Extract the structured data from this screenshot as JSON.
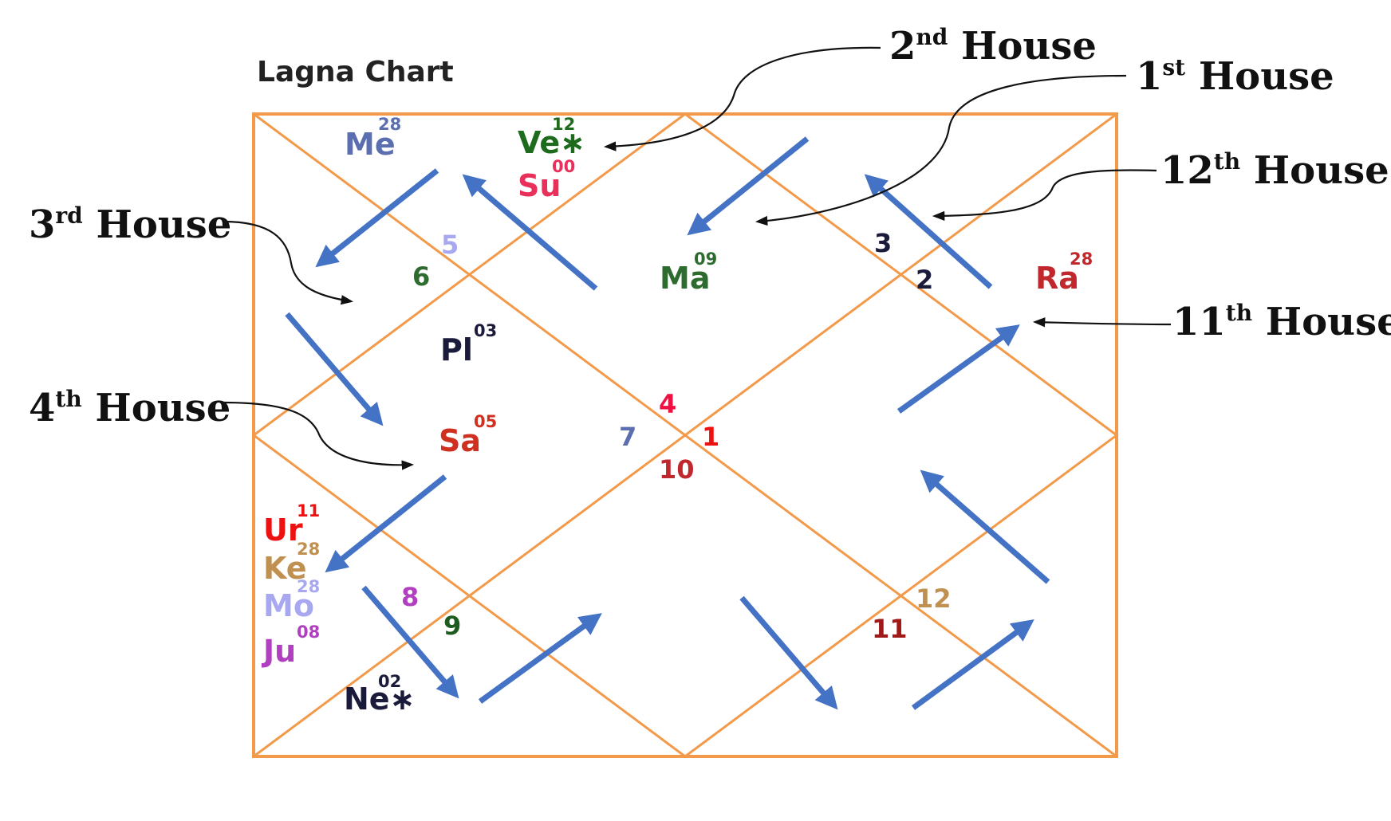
{
  "chart": {
    "title": "Lagna Chart"
  },
  "house_labels": [
    {
      "num": "2",
      "suffix": "nd",
      "text": " House"
    },
    {
      "num": "1",
      "suffix": "st",
      "text": " House"
    },
    {
      "num": "12",
      "suffix": "th",
      "text": " House"
    },
    {
      "num": "3",
      "suffix": "rd",
      "text": " House"
    },
    {
      "num": "11",
      "suffix": "th",
      "text": " House"
    },
    {
      "num": "4",
      "suffix": "th",
      "text": " House"
    }
  ],
  "planets": [
    {
      "name": "Me",
      "deg": "28",
      "color": "#5B6FB0"
    },
    {
      "name": "Ve∗",
      "deg": "12",
      "color": "#1E6B1E"
    },
    {
      "name": "Su",
      "deg": "00",
      "color": "#E8305A"
    },
    {
      "name": "Ma",
      "deg": "09",
      "color": "#2E6B2E"
    },
    {
      "name": "Ra",
      "deg": "28",
      "color": "#C0282E"
    },
    {
      "name": "Pl",
      "deg": "03",
      "color": "#1A1A3A"
    },
    {
      "name": "Sa",
      "deg": "05",
      "color": "#D03020"
    },
    {
      "name": "Ur",
      "deg": "11",
      "color": "#EE1111"
    },
    {
      "name": "Ke",
      "deg": "28",
      "color": "#C09050"
    },
    {
      "name": "Mo",
      "deg": "28",
      "color": "#A8A8F0"
    },
    {
      "name": "Ju",
      "deg": "08",
      "color": "#B040C0"
    },
    {
      "name": "Ne∗",
      "deg": "02",
      "color": "#1A1A3A"
    }
  ],
  "house_numbers": [
    {
      "label": "5",
      "color": "#A8A8F0"
    },
    {
      "label": "6",
      "color": "#2E6B2E"
    },
    {
      "label": "3",
      "color": "#1A1A3A"
    },
    {
      "label": "2",
      "color": "#1A1A3A"
    },
    {
      "label": "4",
      "color": "#EE1144"
    },
    {
      "label": "7",
      "color": "#5B6FB0"
    },
    {
      "label": "1",
      "color": "#EE1111"
    },
    {
      "label": "10",
      "color": "#C0282E"
    },
    {
      "label": "8",
      "color": "#B040C0"
    },
    {
      "label": "9",
      "color": "#1E5B1E"
    },
    {
      "label": "12",
      "color": "#C09050"
    },
    {
      "label": "11",
      "color": "#A01818"
    }
  ],
  "colors": {
    "chart_lines": "#F39A4A",
    "flow_arrows": "#4472C4",
    "pointers": "#111111"
  }
}
